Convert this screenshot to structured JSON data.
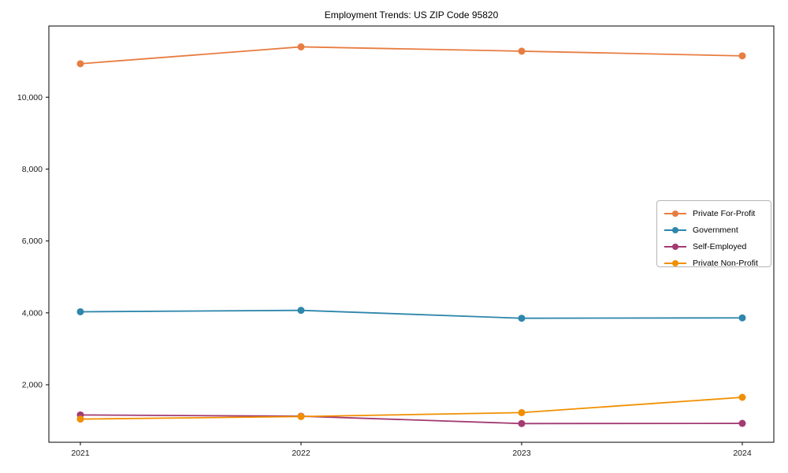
{
  "chart_data": {
    "type": "line",
    "title": "Employment Trends: US ZIP Code 95820",
    "xlabel": "",
    "ylabel": "",
    "categories": [
      "2021",
      "2022",
      "2023",
      "2024"
    ],
    "series": [
      {
        "name": "Private For-Profit",
        "color": "#E87D42",
        "values": [
          10930,
          11400,
          11280,
          11150
        ]
      },
      {
        "name": "Government",
        "color": "#2E86AB",
        "values": [
          4030,
          4070,
          3850,
          3860
        ]
      },
      {
        "name": "Self-Employed",
        "color": "#A23B72",
        "values": [
          1160,
          1125,
          920,
          925
        ]
      },
      {
        "name": "Private Non-Profit",
        "color": "#F18F01",
        "values": [
          1045,
          1115,
          1225,
          1650
        ]
      }
    ],
    "yticks": [
      2000,
      4000,
      6000,
      8000,
      10000
    ],
    "ytick_labels": [
      "2,000",
      "4,000",
      "6,000",
      "8,000",
      "10,000"
    ],
    "ylim": [
      400,
      11980
    ],
    "grid": false,
    "legend_position": "center right",
    "marker": "o",
    "axes_color": "#000000",
    "background": "#ffffff"
  }
}
